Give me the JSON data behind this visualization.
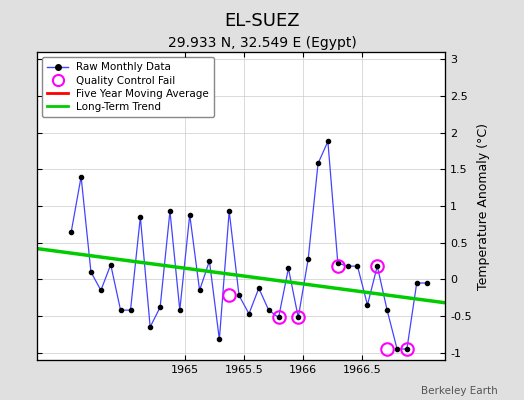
{
  "title": "EL-SUEZ",
  "subtitle": "29.933 N, 32.549 E (Egypt)",
  "watermark": "Berkeley Earth",
  "ylabel": "Temperature Anomaly (°C)",
  "xlim": [
    1963.75,
    1967.2
  ],
  "ylim": [
    -1.1,
    3.1
  ],
  "yticks": [
    -1,
    -0.5,
    0,
    0.5,
    1,
    1.5,
    2,
    2.5,
    3
  ],
  "xticks": [
    1965,
    1965.5,
    1966,
    1966.5
  ],
  "raw_x": [
    1964.042,
    1964.125,
    1964.208,
    1964.292,
    1964.375,
    1964.458,
    1964.542,
    1964.625,
    1964.708,
    1964.792,
    1964.875,
    1964.958,
    1965.042,
    1965.125,
    1965.208,
    1965.292,
    1965.375,
    1965.458,
    1965.542,
    1965.625,
    1965.708,
    1965.792,
    1965.875,
    1965.958,
    1966.042,
    1966.125,
    1966.208,
    1966.292,
    1966.375,
    1966.458,
    1966.542,
    1966.625,
    1966.708,
    1966.792,
    1966.875,
    1966.958,
    1967.042
  ],
  "raw_y": [
    0.65,
    1.4,
    0.1,
    -0.15,
    0.2,
    -0.42,
    -0.42,
    0.85,
    -0.65,
    -0.38,
    0.93,
    -0.42,
    0.88,
    -0.15,
    0.25,
    -0.82,
    0.93,
    -0.22,
    -0.47,
    -0.12,
    -0.42,
    -0.52,
    0.15,
    -0.52,
    0.28,
    1.58,
    1.88,
    0.22,
    0.18,
    0.18,
    -0.35,
    0.18,
    -0.42,
    -0.95,
    -0.95,
    -0.05,
    -0.05
  ],
  "qc_fail_x": [
    1965.375,
    1965.792,
    1965.958,
    1966.292,
    1966.625,
    1966.708,
    1966.875
  ],
  "qc_fail_y": [
    -0.22,
    -0.52,
    -0.52,
    0.18,
    0.18,
    -0.95,
    -0.95
  ],
  "trend_x": [
    1963.75,
    1967.2
  ],
  "trend_y": [
    0.42,
    -0.32
  ],
  "line_color": "#4444ff",
  "dot_color": "#000000",
  "qc_color": "#ff00ff",
  "trend_color": "#00cc00",
  "mavg_color": "#ff0000",
  "bg_color": "#e0e0e0",
  "plot_bg_color": "#ffffff",
  "grid_color": "#cccccc",
  "title_fontsize": 13,
  "subtitle_fontsize": 10,
  "label_fontsize": 9,
  "tick_fontsize": 8
}
